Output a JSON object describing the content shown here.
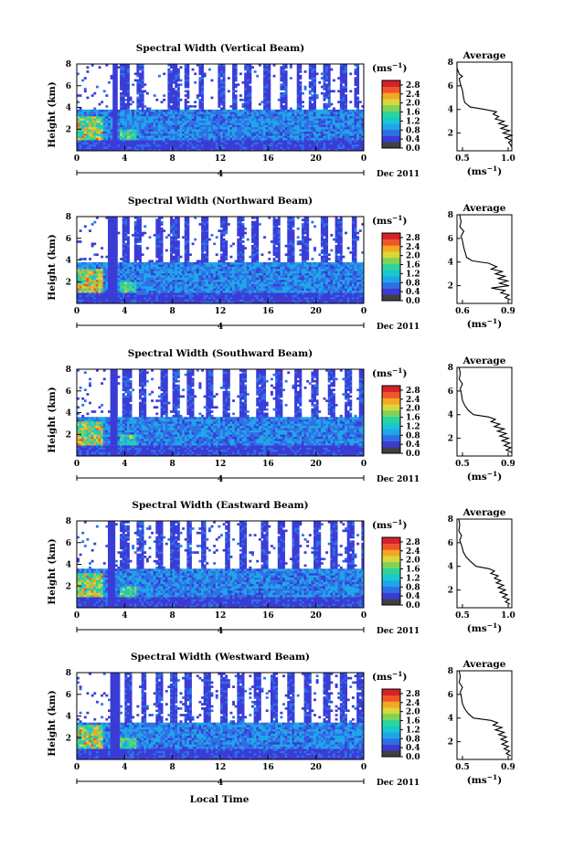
{
  "figure": {
    "bottom_label": "Local Time",
    "date_label": "Dec 2011",
    "day_label": "4"
  },
  "colorbar": {
    "unit_main": "(ms",
    "unit_sup": "−1",
    "unit_close": ")",
    "ticks": [
      "0.0",
      "0.4",
      "0.8",
      "1.2",
      "1.6",
      "2.0",
      "2.4",
      "2.8"
    ],
    "colors": [
      "#404040",
      "#3b3bd6",
      "#2f6fe6",
      "#1fa6e8",
      "#19c7d0",
      "#2dd39a",
      "#7fd35a",
      "#d8d83a",
      "#f5a623",
      "#f0552a",
      "#d4222a"
    ],
    "range": [
      0.0,
      3.0
    ]
  },
  "chart_data": [
    {
      "type": "heatmap",
      "title": "Spectral Width (Vertical Beam)",
      "ylabel": "Height (km)",
      "xlim": [
        0,
        24
      ],
      "ylim": [
        0,
        8
      ],
      "xticks": [
        "0",
        "4",
        "8",
        "12",
        "16",
        "20",
        "0"
      ],
      "yticks": [
        "2",
        "4",
        "6",
        "8"
      ],
      "profile": {
        "title": "Average",
        "xlabel": "(ms−1)",
        "xlim": [
          0.5,
          1.0
        ],
        "xticks": [
          "0.5",
          "1.0"
        ],
        "yticks": [
          "2",
          "4",
          "6",
          "8"
        ],
        "ylim": [
          0.5,
          8
        ],
        "heights": [
          8.0,
          7.5,
          7.0,
          6.8,
          6.6,
          6.2,
          5.6,
          5.0,
          4.6,
          4.2,
          4.0,
          3.8,
          3.6,
          3.4,
          3.2,
          3.0,
          2.8,
          2.6,
          2.4,
          2.2,
          2.0,
          1.8,
          1.6,
          1.4,
          1.2,
          1.0,
          0.8
        ],
        "widths": [
          0.5,
          0.5,
          0.52,
          0.55,
          0.52,
          0.53,
          0.55,
          0.56,
          0.57,
          0.62,
          0.75,
          0.86,
          0.83,
          0.88,
          0.85,
          0.93,
          0.88,
          0.96,
          0.9,
          0.98,
          0.92,
          1.0,
          0.94,
          1.0,
          0.97,
          0.99,
          1.0
        ]
      }
    },
    {
      "type": "heatmap",
      "title": "Spectral Width (Northward Beam)",
      "ylabel": "Height (km)",
      "xlim": [
        0,
        24
      ],
      "ylim": [
        0,
        8
      ],
      "xticks": [
        "0",
        "4",
        "8",
        "12",
        "16",
        "20",
        "0"
      ],
      "yticks": [
        "2",
        "4",
        "6",
        "8"
      ],
      "profile": {
        "title": "Average",
        "xlabel": "(ms−1)",
        "xlim": [
          0.55,
          0.95
        ],
        "xticks": [
          "0.6",
          "0.9"
        ],
        "yticks": [
          "2",
          "4",
          "6",
          "8"
        ],
        "ylim": [
          0.5,
          8
        ],
        "heights": [
          8.0,
          7.4,
          7.0,
          6.6,
          6.2,
          5.8,
          5.2,
          4.8,
          4.4,
          4.1,
          3.9,
          3.6,
          3.4,
          3.2,
          3.0,
          2.8,
          2.6,
          2.4,
          2.2,
          2.0,
          1.8,
          1.6,
          1.4,
          1.2,
          1.0,
          0.8
        ],
        "widths": [
          0.57,
          0.58,
          0.57,
          0.6,
          0.58,
          0.59,
          0.6,
          0.61,
          0.62,
          0.66,
          0.78,
          0.84,
          0.8,
          0.88,
          0.83,
          0.9,
          0.85,
          0.92,
          0.86,
          0.93,
          0.8,
          0.9,
          0.87,
          0.93,
          0.9,
          0.94
        ]
      }
    },
    {
      "type": "heatmap",
      "title": "Spectral Width (Southward Beam)",
      "ylabel": "Height (km)",
      "xlim": [
        0,
        24
      ],
      "ylim": [
        0,
        8
      ],
      "xticks": [
        "0",
        "4",
        "8",
        "12",
        "16",
        "20",
        "0"
      ],
      "yticks": [
        "2",
        "4",
        "6",
        "8"
      ],
      "profile": {
        "title": "Average",
        "xlabel": "(ms−1)",
        "xlim": [
          0.45,
          0.95
        ],
        "xticks": [
          "0.5",
          "0.9"
        ],
        "yticks": [
          "2",
          "4",
          "6",
          "8"
        ],
        "ylim": [
          0.5,
          8
        ],
        "heights": [
          8.0,
          7.5,
          7.0,
          6.6,
          6.2,
          5.8,
          5.2,
          4.8,
          4.4,
          4.0,
          3.8,
          3.6,
          3.4,
          3.2,
          3.0,
          2.8,
          2.6,
          2.4,
          2.2,
          2.0,
          1.8,
          1.6,
          1.4,
          1.2,
          1.0,
          0.8
        ],
        "widths": [
          0.47,
          0.48,
          0.47,
          0.5,
          0.48,
          0.49,
          0.5,
          0.52,
          0.55,
          0.6,
          0.74,
          0.8,
          0.76,
          0.84,
          0.79,
          0.88,
          0.82,
          0.9,
          0.84,
          0.92,
          0.86,
          0.93,
          0.88,
          0.94,
          0.9,
          0.95
        ]
      }
    },
    {
      "type": "heatmap",
      "title": "Spectral Width (Eastward Beam)",
      "ylabel": "Height (km)",
      "xlim": [
        0,
        24
      ],
      "ylim": [
        0,
        8
      ],
      "xticks": [
        "0",
        "4",
        "8",
        "12",
        "16",
        "20",
        "0"
      ],
      "yticks": [
        "2",
        "4",
        "6",
        "8"
      ],
      "profile": {
        "title": "Average",
        "xlabel": "(ms−1)",
        "xlim": [
          0.45,
          1.05
        ],
        "xticks": [
          "0.5",
          "1.0"
        ],
        "yticks": [
          "2",
          "4",
          "6",
          "8"
        ],
        "ylim": [
          0.5,
          8
        ],
        "heights": [
          8.0,
          7.5,
          7.0,
          6.6,
          6.2,
          5.8,
          5.2,
          4.8,
          4.4,
          4.0,
          3.8,
          3.6,
          3.4,
          3.2,
          3.0,
          2.8,
          2.6,
          2.4,
          2.2,
          2.0,
          1.8,
          1.6,
          1.4,
          1.2,
          1.0,
          0.8
        ],
        "widths": [
          0.47,
          0.48,
          0.47,
          0.5,
          0.48,
          0.5,
          0.52,
          0.55,
          0.6,
          0.66,
          0.8,
          0.86,
          0.82,
          0.9,
          0.86,
          0.93,
          0.88,
          0.96,
          0.9,
          0.98,
          0.92,
          1.0,
          0.95,
          1.02,
          0.98,
          1.03
        ]
      }
    },
    {
      "type": "heatmap",
      "title": "Spectral Width (Westward Beam)",
      "ylabel": "Height (km)",
      "xlim": [
        0,
        24
      ],
      "ylim": [
        0,
        8
      ],
      "xticks": [
        "0",
        "4",
        "8",
        "12",
        "16",
        "20",
        "0"
      ],
      "yticks": [
        "2",
        "4",
        "6",
        "8"
      ],
      "profile": {
        "title": "Average",
        "xlabel": "(ms−1)",
        "xlim": [
          0.45,
          0.95
        ],
        "xticks": [
          "0.5",
          "0.9"
        ],
        "yticks": [
          "2",
          "4",
          "6",
          "8"
        ],
        "ylim": [
          0.5,
          8
        ],
        "heights": [
          8.0,
          7.5,
          7.0,
          6.6,
          6.2,
          5.8,
          5.2,
          4.8,
          4.4,
          4.0,
          3.8,
          3.6,
          3.4,
          3.2,
          3.0,
          2.8,
          2.6,
          2.4,
          2.2,
          2.0,
          1.8,
          1.6,
          1.4,
          1.2,
          1.0,
          0.8
        ],
        "widths": [
          0.47,
          0.48,
          0.47,
          0.5,
          0.48,
          0.49,
          0.5,
          0.52,
          0.55,
          0.6,
          0.76,
          0.82,
          0.78,
          0.86,
          0.8,
          0.88,
          0.83,
          0.9,
          0.85,
          0.91,
          0.86,
          0.92,
          0.88,
          0.93,
          0.9,
          0.94
        ]
      }
    }
  ]
}
